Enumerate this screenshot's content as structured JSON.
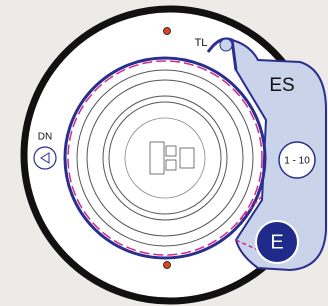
{
  "labels": {
    "tl": "TL",
    "es": "ES",
    "dn": "DN",
    "range": "1 - 10",
    "exit": "E"
  }
}
